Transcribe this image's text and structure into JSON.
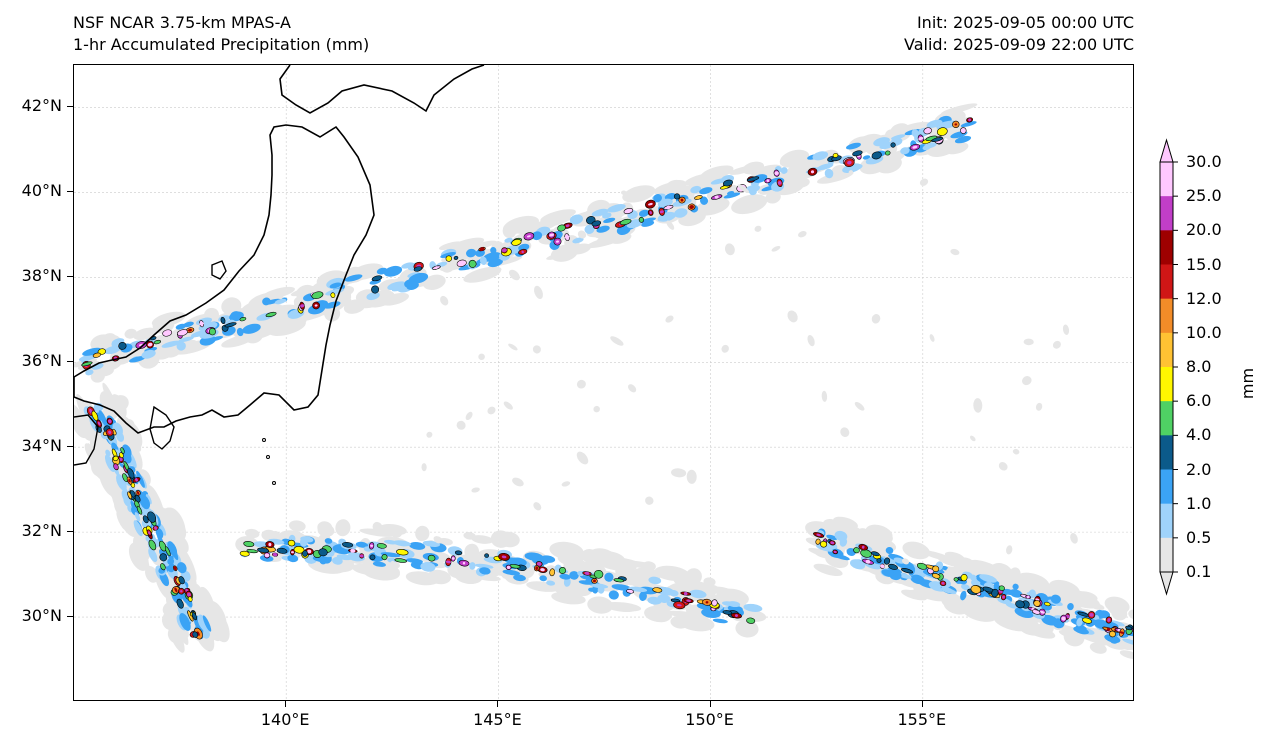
{
  "header": {
    "title_line1": "NSF NCAR 3.75-km MPAS-A",
    "title_line2": "1-hr Accumulated Precipitation (mm)",
    "init_label": "Init: 2025-09-05 00:00 UTC",
    "valid_label": "Valid: 2025-09-09 22:00 UTC"
  },
  "map": {
    "lon_range": [
      135,
      160
    ],
    "lat_range": [
      28,
      43
    ],
    "lat_ticks": [
      "30°N",
      "32°N",
      "34°N",
      "36°N",
      "38°N",
      "40°N",
      "42°N"
    ],
    "lon_ticks": [
      "140°E",
      "145°E",
      "150°E",
      "155°E"
    ],
    "gridlines": true
  },
  "colorbar": {
    "title": "mm",
    "levels": [
      "0.1",
      "0.5",
      "1.0",
      "2.0",
      "4.0",
      "6.0",
      "8.0",
      "10.0",
      "12.0",
      "15.0",
      "20.0",
      "25.0",
      "30.0"
    ],
    "colors": [
      "#e6e6e6",
      "#9fd3fb",
      "#3ba3f5",
      "#0b5a8a",
      "#4fd164",
      "#fff700",
      "#ffc233",
      "#f28c28",
      "#d01616",
      "#9e0000",
      "#c13ec8",
      "#ffc8ff"
    ],
    "extend": "both"
  },
  "chart_data": {
    "type": "heatmap",
    "variable": "1-hr Accumulated Precipitation (mm)",
    "bands": [
      {
        "lat_start": 36.0,
        "lon_start": 135.2,
        "lat_end": 41.6,
        "lon_end": 156.2,
        "max_mm": 30
      },
      {
        "lat_start": 31.6,
        "lon_start": 139.0,
        "lat_end": 30.0,
        "lon_end": 151.0,
        "max_mm": 25
      },
      {
        "lat_start": 31.8,
        "lon_start": 152.5,
        "lat_end": 29.6,
        "lon_end": 160.0,
        "max_mm": 25
      },
      {
        "lat_start": 35.0,
        "lon_start": 135.5,
        "lat_end": 29.5,
        "lon_end": 138.0,
        "max_mm": 15
      }
    ]
  }
}
